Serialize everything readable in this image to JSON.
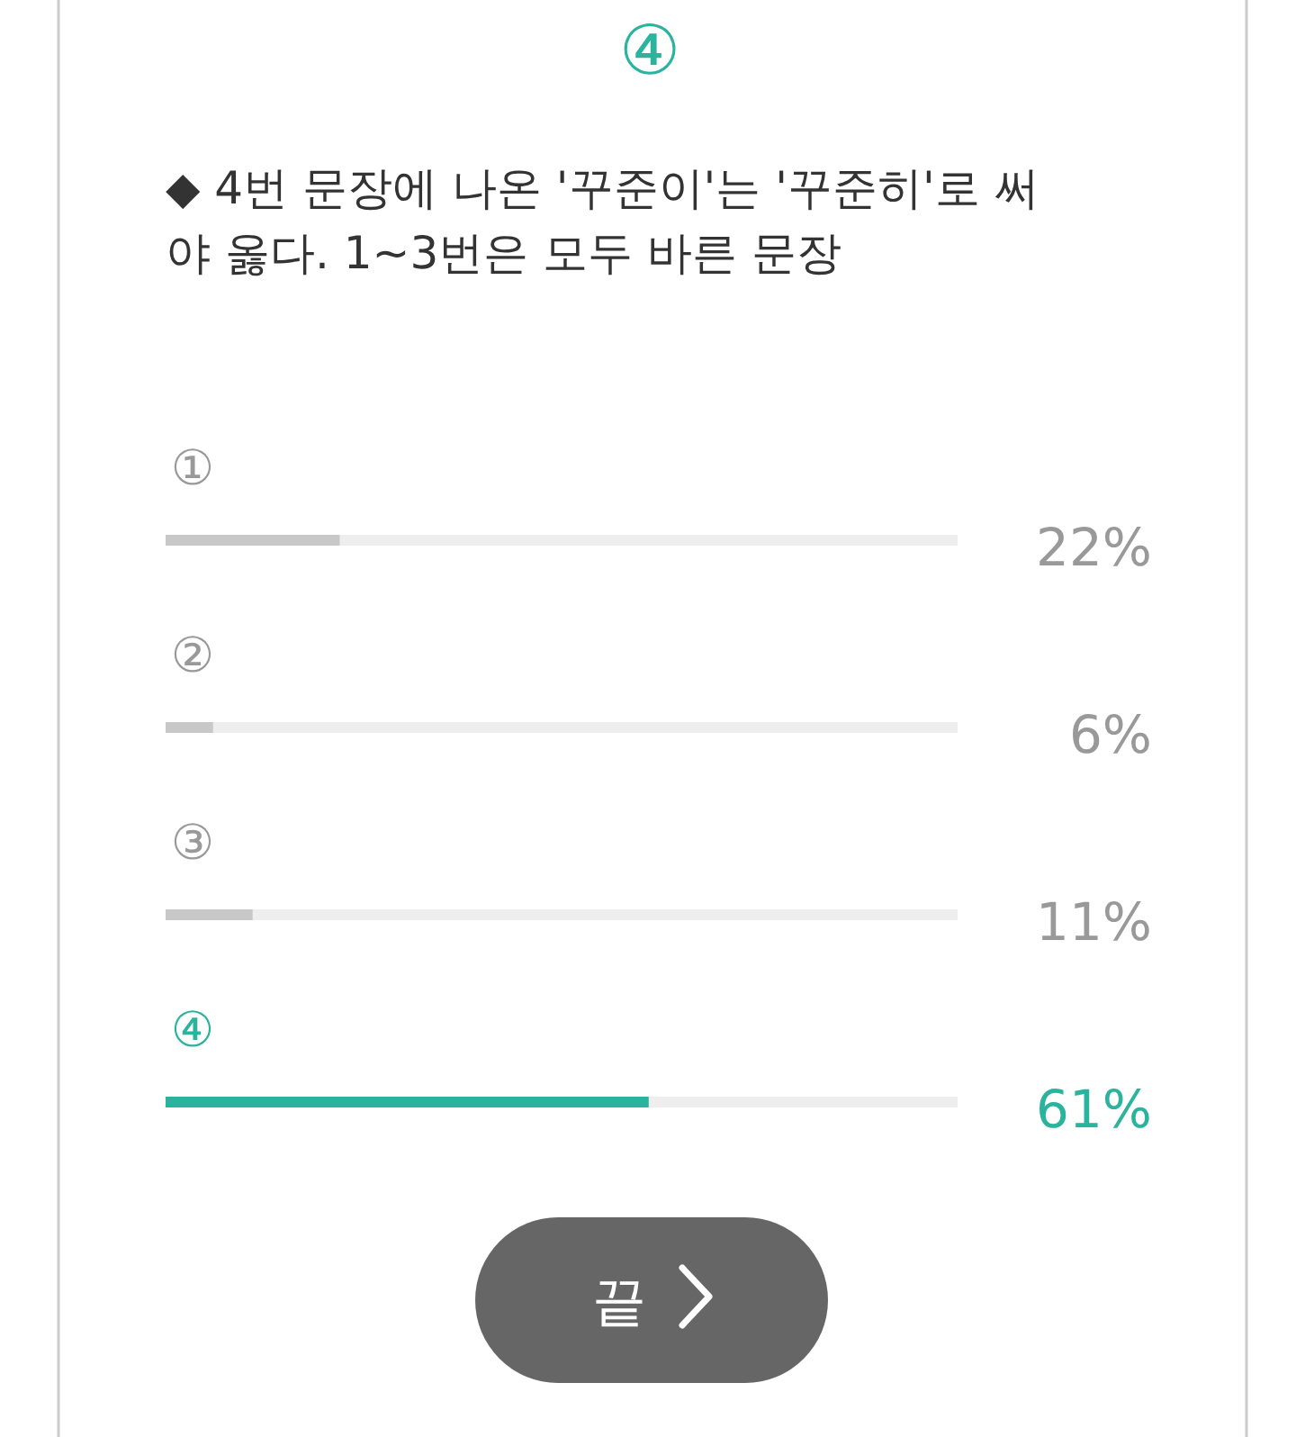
{
  "chart_data": {
    "type": "bar",
    "orientation": "horizontal",
    "title": "④",
    "subtitle": "◆ 4번 문장에 나온 '꾸준이'는 '꾸준히'로 써야 옳다. 1~3번은 모두 바른 문장",
    "categories": [
      "①",
      "②",
      "③",
      "④"
    ],
    "values": [
      22,
      6,
      11,
      61
    ],
    "colors": [
      "#c8c8c8",
      "#c8c8c8",
      "#c8c8c8",
      "#2ab39d"
    ],
    "value_labels": [
      "22%",
      "6%",
      "11%",
      "61%"
    ],
    "xlim": [
      0,
      100
    ],
    "tick_labels": "y",
    "annotations": [
      "끝"
    ]
  }
}
